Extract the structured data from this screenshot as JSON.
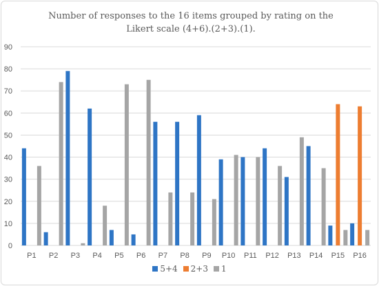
{
  "chart_data": {
    "type": "bar",
    "title": "Number of responses to the 16 items  grouped by rating on the Likert scale (4+6).(2+3).(1).",
    "xlabel": "",
    "ylabel": "",
    "ylim": [
      0,
      90
    ],
    "yticks": [
      0,
      10,
      20,
      30,
      40,
      50,
      60,
      70,
      80,
      90
    ],
    "grid": "horizontal",
    "legend_position": "bottom",
    "categories": [
      "P1",
      "P2",
      "P3",
      "P4",
      "P5",
      "P6",
      "P7",
      "P8",
      "P9",
      "P10",
      "P11",
      "P12",
      "P13",
      "P14",
      "P15",
      "P16"
    ],
    "series": [
      {
        "name": "5+4",
        "color": "#2e75c5",
        "values": [
          44,
          6,
          79,
          62,
          7,
          5,
          56,
          56,
          59,
          39,
          40,
          44,
          31,
          45,
          9,
          10
        ]
      },
      {
        "name": "2+3",
        "color": "#ed7d31",
        "values": [
          0,
          0,
          0,
          0,
          0,
          0,
          0,
          0,
          0,
          0,
          0,
          0,
          0,
          0,
          64,
          63
        ]
      },
      {
        "name": "1",
        "color": "#a5a5a5",
        "values": [
          36,
          74,
          1,
          18,
          73,
          75,
          24,
          24,
          21,
          41,
          40,
          36,
          49,
          35,
          7,
          7
        ]
      }
    ]
  }
}
